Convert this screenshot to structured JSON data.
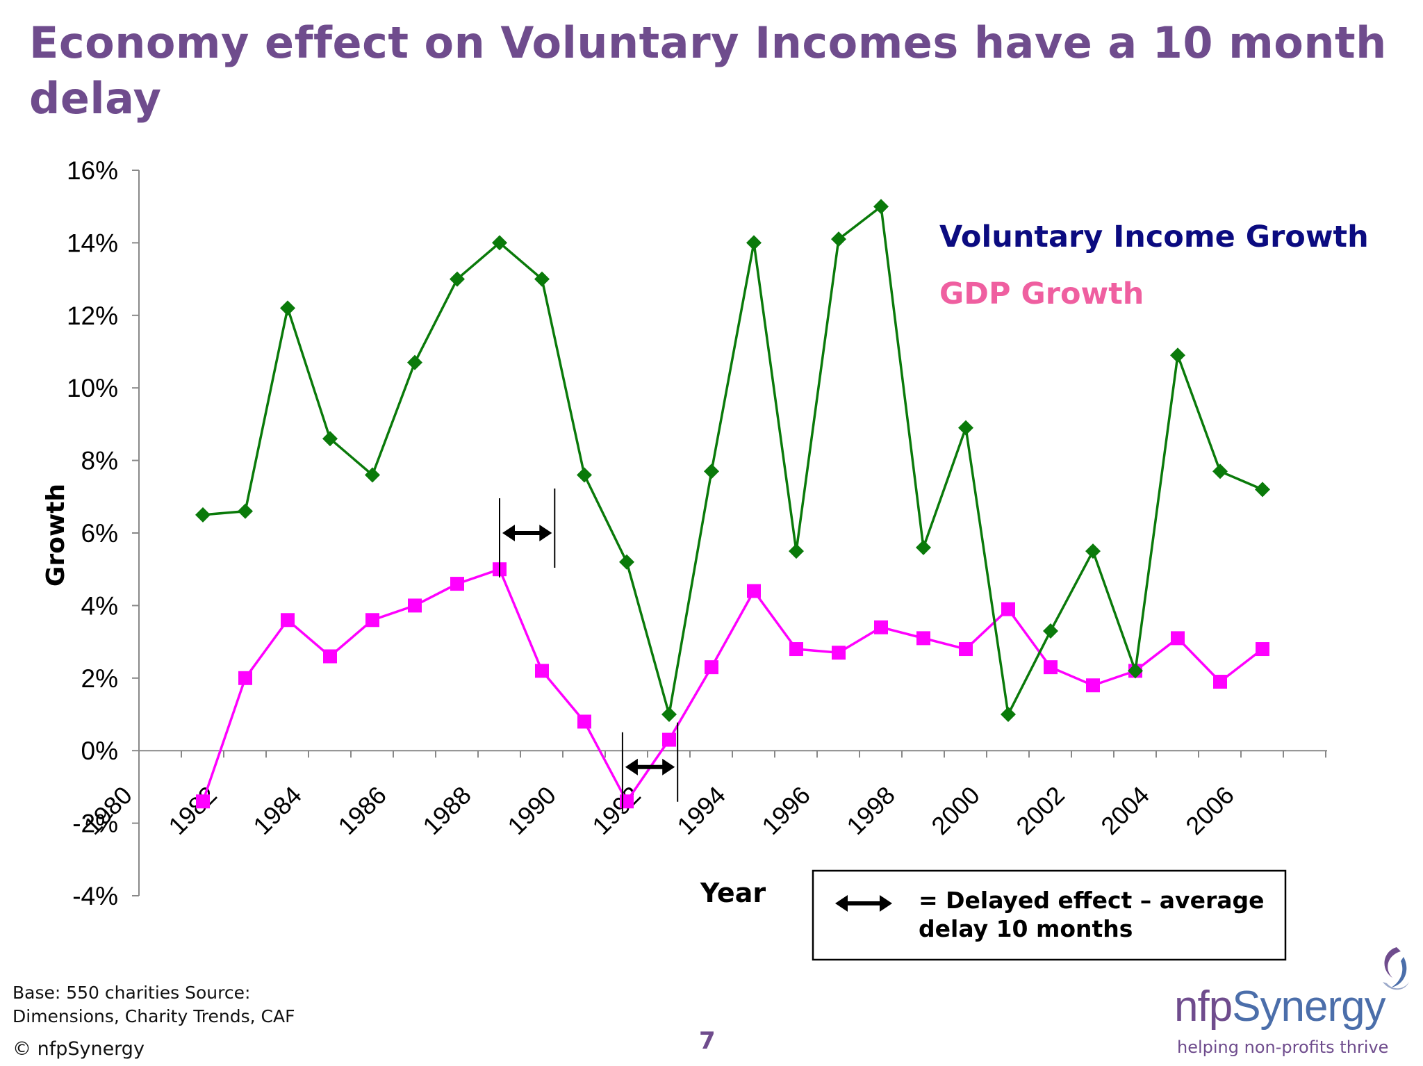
{
  "slide": {
    "title": "Economy effect on Voluntary Incomes have a 10 month delay",
    "source": "Base: 550 charities Source: Dimensions, Charity Trends, CAF",
    "copyright": "© nfpSynergy",
    "page_number": "7"
  },
  "logo": {
    "name_part1": "nfp",
    "name_part2": "Synergy",
    "tagline": "helping non-profits thrive"
  },
  "legend_box": {
    "text_line1": "= Delayed effect – average",
    "text_line2": "delay 10 months"
  },
  "chart_data": {
    "type": "line",
    "title": "",
    "xlabel": "Year",
    "ylabel": "Growth",
    "ylim": [
      -0.04,
      0.16
    ],
    "y_ticks": [
      {
        "value": 0.16,
        "label": "16%"
      },
      {
        "value": 0.14,
        "label": "14%"
      },
      {
        "value": 0.12,
        "label": "12%"
      },
      {
        "value": 0.1,
        "label": "10%"
      },
      {
        "value": 0.08,
        "label": "8%"
      },
      {
        "value": 0.06,
        "label": "6%"
      },
      {
        "value": 0.04,
        "label": "4%"
      },
      {
        "value": 0.02,
        "label": "2%"
      },
      {
        "value": 0.0,
        "label": "0%"
      },
      {
        "value": -0.02,
        "label": "-2%"
      },
      {
        "value": -0.04,
        "label": "-4%"
      }
    ],
    "x_tick_labels": [
      "1980",
      "1982",
      "1984",
      "1986",
      "1988",
      "1990",
      "1992",
      "1994",
      "1996",
      "1998",
      "2000",
      "2002",
      "2004",
      "2006"
    ],
    "x": [
      1981,
      1982,
      1983,
      1984,
      1985,
      1986,
      1987,
      1988,
      1989,
      1990,
      1991,
      1992,
      1993,
      1994,
      1995,
      1996,
      1997,
      1998,
      1999,
      2000,
      2001,
      2002,
      2003,
      2004,
      2005,
      2006
    ],
    "series": [
      {
        "name": "Voluntary Income Growth",
        "legend_color": "#0b0b80",
        "color": "#0a7a0a",
        "marker": "diamond",
        "values": [
          0.065,
          0.066,
          0.122,
          0.086,
          0.076,
          0.107,
          0.13,
          0.14,
          0.13,
          0.076,
          0.052,
          0.01,
          0.077,
          0.14,
          0.055,
          0.141,
          0.15,
          0.056,
          0.089,
          0.01,
          0.033,
          0.055,
          0.022,
          0.109,
          0.077,
          0.072
        ]
      },
      {
        "name": "GDP Growth",
        "legend_color": "#ef5fa0",
        "color": "#ff00ff",
        "marker": "square",
        "values": [
          -0.014,
          0.02,
          0.036,
          0.026,
          0.036,
          0.04,
          0.046,
          0.05,
          0.022,
          0.008,
          -0.014,
          0.003,
          0.023,
          0.044,
          0.028,
          0.027,
          0.034,
          0.031,
          0.028,
          0.039,
          0.023,
          0.018,
          0.022,
          0.031,
          0.019,
          0.028
        ]
      }
    ],
    "annotations": [
      {
        "type": "double-arrow",
        "from_year": 1988,
        "to_year": 1989.3,
        "y": 0.06
      },
      {
        "type": "double-arrow",
        "from_year": 1990.9,
        "to_year": 1992.2,
        "y": -0.0045
      }
    ],
    "grid": false,
    "legend_position": "top-right"
  }
}
